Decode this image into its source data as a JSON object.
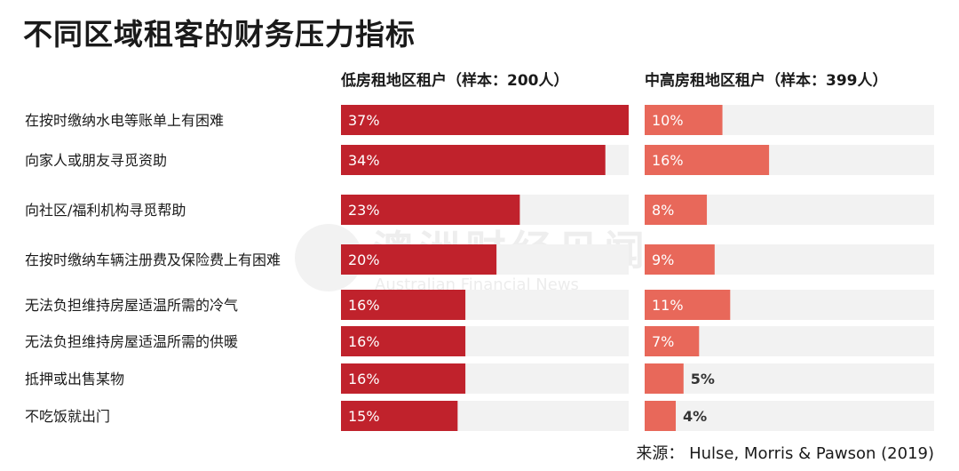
{
  "title": "不同区域租客的财务压力指标",
  "source": "来源： Hulse, Morris & Pawson (2019)",
  "watermark": {
    "cn": "澳洲财经见闻",
    "en": "Australian Financial News"
  },
  "colors": {
    "low_rent": "#c0222c",
    "mid_high_rent": "#e8685a",
    "track": "#f2f2f2"
  },
  "chart_data": {
    "type": "bar",
    "orientation": "horizontal",
    "title": "不同区域租客的财务压力指标",
    "categories": [
      "在按时缴纳水电等账单上有困难",
      "向家人或朋友寻觅资助",
      "向社区/福利机构寻觅帮助",
      "在按时缴纳车辆注册费及保险费上有困难",
      "无法负担维持房屋适温所需的冷气",
      "无法负担维持房屋适温所需的供暖",
      "抵押或出售某物",
      "不吃饭就出门"
    ],
    "series": [
      {
        "name": "低房租地区租户（样本：200人）",
        "values": [
          37,
          34,
          23,
          20,
          16,
          16,
          16,
          15
        ],
        "labels": [
          "37%",
          "34%",
          "23%",
          "20%",
          "16%",
          "16%",
          "16%",
          "15%"
        ]
      },
      {
        "name": "中高房租地区租户（样本：399人）",
        "values": [
          10,
          16,
          8,
          9,
          11,
          7,
          5,
          4
        ],
        "labels": [
          "10%",
          "16%",
          "8%",
          "9%",
          "11%",
          "7%",
          "5%",
          "4%"
        ]
      }
    ],
    "xlim": [
      0,
      37
    ],
    "grid": false
  }
}
